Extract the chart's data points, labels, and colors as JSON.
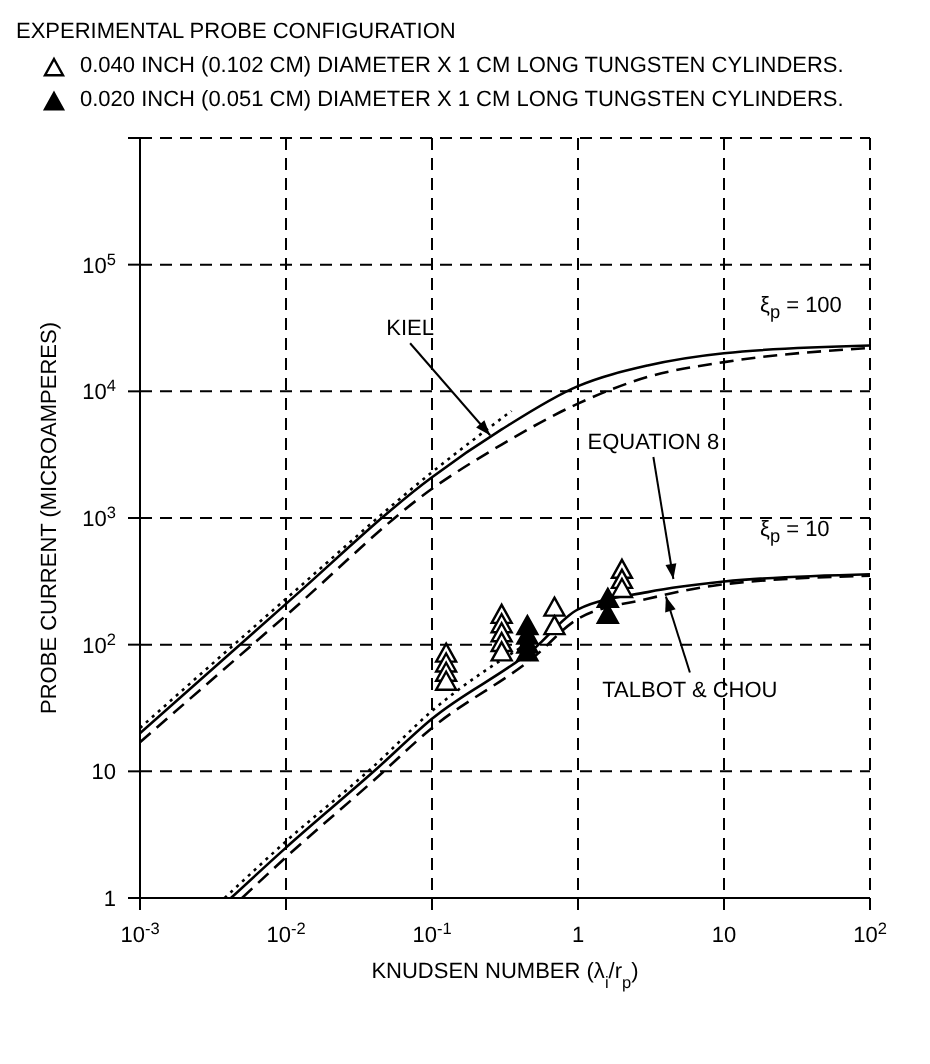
{
  "chart_data": {
    "type": "line",
    "legend_title": "EXPERIMENTAL PROBE CONFIGURATION",
    "xlabel": "KNUDSEN NUMBER (λ$_{i}$/r$_{p}$)",
    "ylabel": "PROBE CURRENT (MICROAMPERES)",
    "log": "xy",
    "grid": true,
    "legend": "top",
    "xlim": [
      0.001,
      100
    ],
    "ylim": [
      1,
      1000000
    ],
    "xticks": [
      {
        "value": 0.001,
        "label": "10$^{-3}$"
      },
      {
        "value": 0.01,
        "label": "10$^{-2}$"
      },
      {
        "value": 0.1,
        "label": "10$^{-1}$"
      },
      1,
      10,
      {
        "value": 100,
        "label": "10$^{2}$"
      }
    ],
    "yticks": [
      1,
      10,
      {
        "value": 100,
        "label": "10$^{2}$"
      },
      {
        "value": 1000,
        "label": "10$^{3}$"
      },
      {
        "value": 10000,
        "label": "10$^{4}$"
      },
      {
        "value": 100000,
        "label": "10$^{5}$"
      },
      {
        "value": 1000000,
        "label": null
      }
    ],
    "series": [
      {
        "line_style": "dotted",
        "color": "#000000",
        "x": [
          0.001,
          0.01,
          0.1,
          0.35
        ],
        "values": [
          22,
          230,
          2300,
          7000
        ]
      },
      {
        "line_style": "solid",
        "color": "#000000",
        "x": [
          0.001,
          0.01,
          0.1,
          0.3,
          1,
          3,
          10,
          100
        ],
        "values": [
          20,
          210,
          2100,
          5000,
          11000,
          16000,
          20000,
          23000
        ]
      },
      {
        "line_style": "dashed",
        "color": "#000000",
        "x": [
          0.001,
          0.01,
          0.1,
          0.3,
          1,
          3,
          10,
          100
        ],
        "values": [
          17,
          170,
          1700,
          3800,
          8000,
          13000,
          17000,
          22000
        ]
      },
      {
        "line_style": "dotted",
        "color": "#000000",
        "x": [
          0.0038,
          0.01,
          0.04,
          0.1,
          0.5
        ],
        "values": [
          1,
          2.8,
          11,
          30,
          110
        ]
      },
      {
        "line_style": "solid",
        "color": "#000000",
        "x": [
          0.0042,
          0.01,
          0.04,
          0.1,
          0.5,
          1,
          3,
          10,
          100
        ],
        "values": [
          1,
          2.5,
          10,
          26,
          93,
          190,
          260,
          315,
          360
        ]
      },
      {
        "line_style": "dashed",
        "color": "#000000",
        "x": [
          0.005,
          0.01,
          0.04,
          0.1,
          0.5,
          1,
          3,
          10,
          100
        ],
        "values": [
          1,
          2.1,
          8.5,
          22,
          80,
          160,
          230,
          300,
          350
        ]
      },
      {
        "type": "scatter",
        "marker": "triangle",
        "name": "0.040 INCH (0.102 CM) DIAMETER X 1 CM LONG TUNGSTEN CYLINDERS.",
        "color": "#000000",
        "x": [
          0.125,
          0.125,
          0.125,
          0.125,
          0.3,
          0.3,
          0.3,
          0.3,
          0.3,
          0.69,
          0.69,
          2,
          2,
          2
        ],
        "values": [
          85,
          71,
          60,
          51,
          172,
          145,
          123,
          103,
          87,
          196,
          140,
          390,
          325,
          275
        ]
      },
      {
        "type": "scatter",
        "marker": "triangle",
        "name": "0.020 INCH (0.051 CM) DIAMETER X 1 CM LONG TUNGSTEN CYLINDERS.",
        "color": "#000000",
        "x": [
          0.45,
          0.45,
          0.45,
          0.45,
          1.6,
          1.6
        ],
        "values": [
          140,
          118,
          100,
          87,
          230,
          172
        ]
      }
    ],
    "annotations": [
      {
        "text": "KIEL",
        "x": 0.25,
        "y": 4500
      },
      {
        "text": "EQUATION 8",
        "x": 4.5,
        "y": 330
      },
      {
        "text": "TALBOT & CHOU",
        "x": 4,
        "y": 240
      },
      "ξ$_{p}$ = 100",
      "ξ$_{p}$ = 10"
    ]
  }
}
